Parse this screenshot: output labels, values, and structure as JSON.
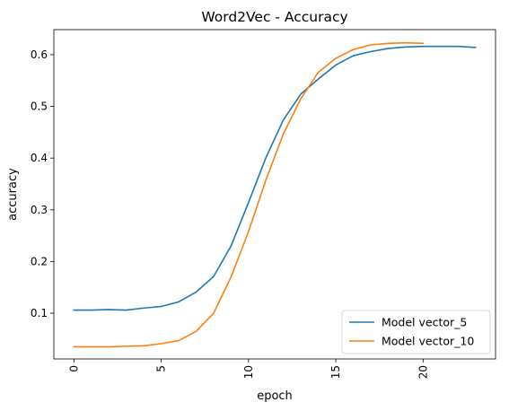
{
  "chart_data": {
    "type": "line",
    "title": "Word2Vec - Accuracy",
    "xlabel": "epoch",
    "ylabel": "accuracy",
    "xlim": [
      -1.15,
      24.15
    ],
    "ylim": [
      0.0115,
      0.6485
    ],
    "xticks": [
      0,
      5,
      10,
      15,
      20
    ],
    "xtick_labels": [
      "0",
      "5",
      "10",
      "15",
      "20"
    ],
    "xtick_rotation": 90,
    "yticks": [
      0.1,
      0.2,
      0.3,
      0.4,
      0.5,
      0.6
    ],
    "ytick_labels": [
      "0.1",
      "0.2",
      "0.3",
      "0.4",
      "0.5",
      "0.6"
    ],
    "grid": false,
    "legend_position": "lower right",
    "series": [
      {
        "name": "Model vector_5",
        "color": "#1f77b4",
        "x": [
          0,
          1,
          2,
          3,
          4,
          5,
          6,
          7,
          8,
          9,
          10,
          11,
          12,
          13,
          14,
          15,
          16,
          17,
          18,
          19,
          20,
          21,
          22,
          23
        ],
        "y": [
          0.106,
          0.106,
          0.107,
          0.106,
          0.11,
          0.113,
          0.122,
          0.141,
          0.171,
          0.23,
          0.314,
          0.401,
          0.474,
          0.524,
          0.553,
          0.58,
          0.598,
          0.606,
          0.612,
          0.615,
          0.616,
          0.616,
          0.616,
          0.614
        ]
      },
      {
        "name": "Model vector_10",
        "color": "#ff7f0e",
        "x": [
          0,
          1,
          2,
          3,
          4,
          5,
          6,
          7,
          8,
          9,
          10,
          11,
          12,
          13,
          14,
          15,
          16,
          17,
          18,
          19,
          20
        ],
        "y": [
          0.035,
          0.035,
          0.035,
          0.036,
          0.037,
          0.041,
          0.047,
          0.065,
          0.1,
          0.17,
          0.258,
          0.358,
          0.447,
          0.515,
          0.566,
          0.593,
          0.61,
          0.619,
          0.622,
          0.623,
          0.622
        ]
      }
    ]
  }
}
